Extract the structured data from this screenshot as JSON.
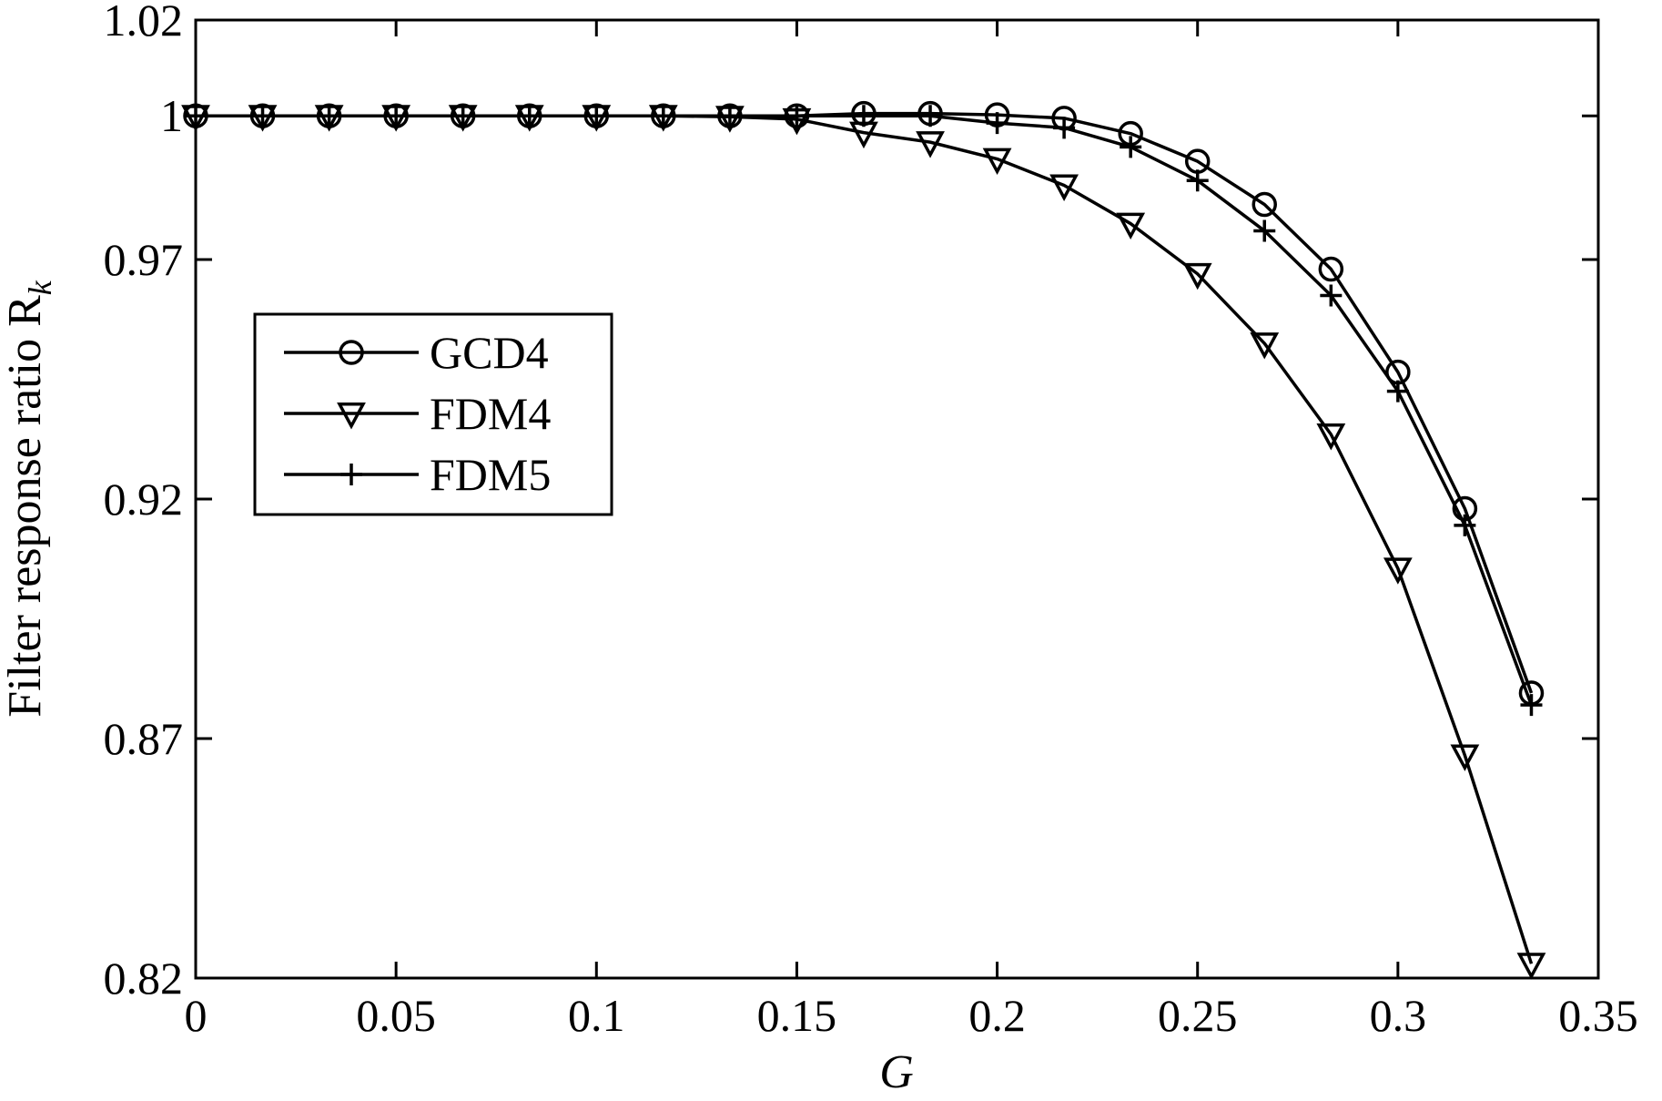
{
  "chart_data": {
    "type": "line",
    "title": "",
    "xlabel": "G",
    "ylabel": "Filter response ratio R",
    "ylabel_subscript": "k",
    "xlim": [
      0,
      0.35
    ],
    "ylim": [
      0.82,
      1.02
    ],
    "xticks": [
      0,
      0.05,
      0.1,
      0.15,
      0.2,
      0.25,
      0.3,
      0.35
    ],
    "xtick_labels": [
      "0",
      "0.05",
      "0.1",
      "0.15",
      "0.2",
      "0.25",
      "0.3",
      "0.35"
    ],
    "yticks": [
      0.82,
      0.87,
      0.92,
      0.97,
      1.0,
      1.02
    ],
    "ytick_labels": [
      "0.82",
      "0.87",
      "0.92",
      "0.97",
      "1",
      "1.02"
    ],
    "grid": false,
    "legend_position": "center-left",
    "line_color": "#000000",
    "x": [
      0,
      0.0167,
      0.0333,
      0.05,
      0.0667,
      0.0833,
      0.1,
      0.1167,
      0.1333,
      0.15,
      0.1667,
      0.1833,
      0.2,
      0.2167,
      0.2333,
      0.25,
      0.2667,
      0.2833,
      0.3,
      0.3167,
      0.3333
    ],
    "series": [
      {
        "name": "GCD4",
        "marker": "circle",
        "values": [
          1.0,
          1.0,
          1.0,
          1.0,
          1.0,
          1.0,
          1.0,
          1.0,
          1.0,
          1.0,
          1.0005,
          1.0005,
          1.0002,
          0.9995,
          0.9963,
          0.9905,
          0.9815,
          0.968,
          0.9465,
          0.918,
          0.8795
        ]
      },
      {
        "name": "FDM4",
        "marker": "triangle-down",
        "values": [
          1.0,
          1.0,
          1.0,
          1.0,
          1.0,
          1.0,
          1.0,
          1.0,
          0.9998,
          0.9993,
          0.9965,
          0.9945,
          0.991,
          0.9855,
          0.9775,
          0.967,
          0.9525,
          0.9335,
          0.9055,
          0.8665,
          0.823
        ]
      },
      {
        "name": "FDM5",
        "marker": "plus",
        "values": [
          1.0,
          1.0,
          1.0,
          1.0,
          1.0,
          1.0,
          1.0,
          1.0,
          1.0,
          1.0,
          1.0,
          1.0,
          0.9985,
          0.9975,
          0.9935,
          0.9865,
          0.976,
          0.9625,
          0.9425,
          0.9145,
          0.877
        ]
      }
    ]
  }
}
